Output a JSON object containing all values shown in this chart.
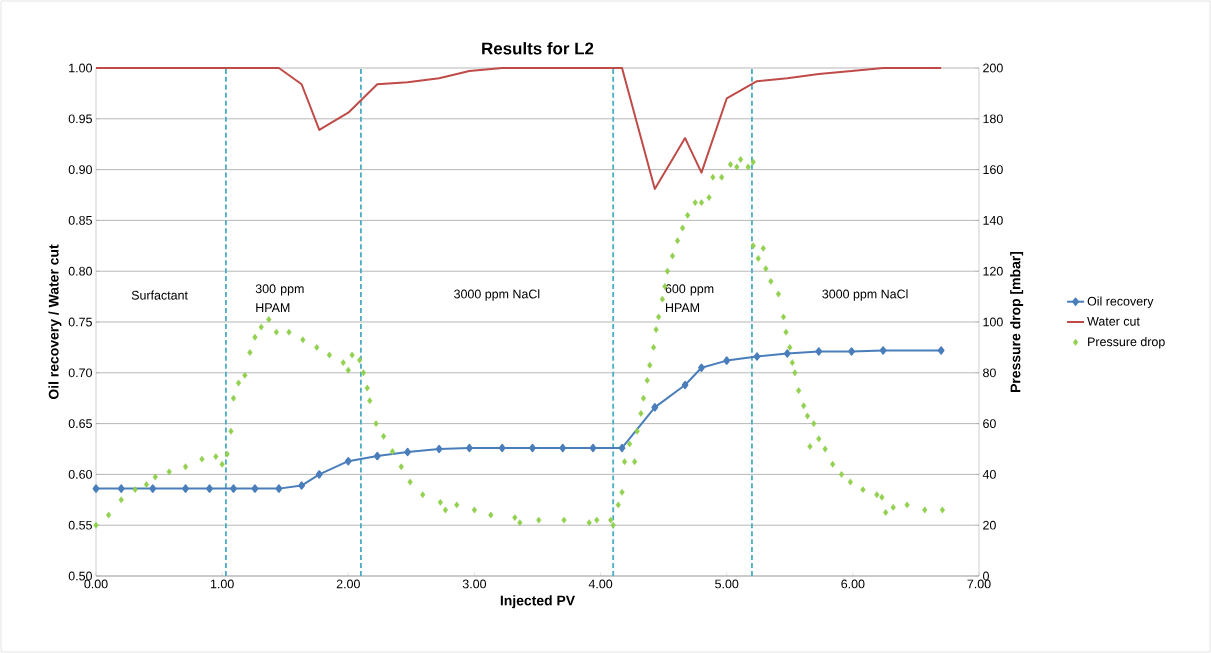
{
  "chart_data": {
    "type": "line",
    "title": "Results for L2",
    "xlabel": "Injected PV",
    "ylabel": "Oil recovery / Water cut",
    "y2label": "Pressure drop [mbar]",
    "xlim": [
      0,
      7
    ],
    "ylim": [
      0.5,
      1.0
    ],
    "y2lim": [
      0,
      200
    ],
    "xticks": [
      {
        "value": 0,
        "label": "0.00"
      },
      {
        "value": 1,
        "label": "1.00"
      },
      {
        "value": 2,
        "label": "2.00"
      },
      {
        "value": 3,
        "label": "3.00"
      },
      {
        "value": 4,
        "label": "4.00"
      },
      {
        "value": 5,
        "label": "5.00"
      },
      {
        "value": 6,
        "label": "6.00"
      },
      {
        "value": 7,
        "label": "7.00"
      }
    ],
    "yticks": [
      {
        "value": 0.5,
        "label": "0.50"
      },
      {
        "value": 0.55,
        "label": "0.55"
      },
      {
        "value": 0.6,
        "label": "0.60"
      },
      {
        "value": 0.65,
        "label": "0.65"
      },
      {
        "value": 0.7,
        "label": "0.70"
      },
      {
        "value": 0.75,
        "label": "0.75"
      },
      {
        "value": 0.8,
        "label": "0.80"
      },
      {
        "value": 0.85,
        "label": "0.85"
      },
      {
        "value": 0.9,
        "label": "0.90"
      },
      {
        "value": 0.95,
        "label": "0.95"
      },
      {
        "value": 1.0,
        "label": "1.00"
      }
    ],
    "y2ticks": [
      0,
      20,
      40,
      60,
      80,
      100,
      120,
      140,
      160,
      180,
      200
    ],
    "grid": "y",
    "legend": "right",
    "series": [
      {
        "name": "Oil recovery",
        "color": "#4a7ebb",
        "marker": "diamond",
        "x": [
          0,
          0.2,
          0.45,
          0.71,
          0.9,
          1.09,
          1.26,
          1.45,
          1.63,
          1.77,
          2.0,
          2.23,
          2.47,
          2.72,
          2.96,
          3.22,
          3.46,
          3.7,
          3.94,
          4.17,
          4.43,
          4.67,
          4.8,
          5.0,
          5.24,
          5.48,
          5.73,
          5.99,
          6.24,
          6.7
        ],
        "values": [
          0.586,
          0.586,
          0.586,
          0.586,
          0.586,
          0.586,
          0.586,
          0.586,
          0.589,
          0.6,
          0.613,
          0.618,
          0.622,
          0.625,
          0.626,
          0.626,
          0.626,
          0.626,
          0.626,
          0.626,
          0.666,
          0.688,
          0.705,
          0.712,
          0.716,
          0.719,
          0.721,
          0.721,
          0.722,
          0.722
        ]
      },
      {
        "name": "Water cut",
        "color": "#be4b48",
        "marker": "none",
        "x": [
          0,
          0.2,
          0.45,
          0.71,
          0.9,
          1.09,
          1.26,
          1.45,
          1.63,
          1.77,
          2.0,
          2.23,
          2.47,
          2.72,
          2.96,
          3.22,
          3.46,
          3.7,
          3.94,
          4.17,
          4.43,
          4.67,
          4.8,
          5.0,
          5.24,
          5.48,
          5.73,
          5.99,
          6.24,
          6.7
        ],
        "values": [
          1.0,
          1.0,
          1.0,
          1.0,
          1.0,
          1.0,
          1.0,
          1.0,
          0.984,
          0.939,
          0.956,
          0.984,
          0.986,
          0.99,
          0.997,
          1.0,
          1.0,
          1.0,
          1.0,
          1.0,
          0.881,
          0.931,
          0.897,
          0.97,
          0.987,
          0.99,
          0.994,
          0.997,
          1.0,
          1.0
        ]
      },
      {
        "name": "Pressure drop",
        "color": "#92d050",
        "type": "scatter",
        "marker": "diamond",
        "axis": "y2",
        "x": [
          0.0,
          0.1,
          0.2,
          0.31,
          0.4,
          0.47,
          0.58,
          0.71,
          0.84,
          0.95,
          1.0,
          1.04,
          1.07,
          1.09,
          1.13,
          1.18,
          1.22,
          1.26,
          1.31,
          1.37,
          1.43,
          1.53,
          1.64,
          1.75,
          1.85,
          1.96,
          2.0,
          2.03,
          2.09,
          2.12,
          2.15,
          2.17,
          2.22,
          2.28,
          2.35,
          2.42,
          2.49,
          2.59,
          2.73,
          2.77,
          2.86,
          3.0,
          3.13,
          3.32,
          3.36,
          3.51,
          3.71,
          3.91,
          3.97,
          4.08,
          4.1,
          4.14,
          4.17,
          4.19,
          4.23,
          4.27,
          4.29,
          4.32,
          4.34,
          4.37,
          4.39,
          4.42,
          4.44,
          4.46,
          4.49,
          4.51,
          4.53,
          4.57,
          4.61,
          4.65,
          4.69,
          4.75,
          4.8,
          4.86,
          4.89,
          4.96,
          5.03,
          5.08,
          5.11,
          5.17,
          5.21,
          5.21,
          5.25,
          5.29,
          5.31,
          5.35,
          5.41,
          5.45,
          5.47,
          5.5,
          5.52,
          5.54,
          5.57,
          5.61,
          5.64,
          5.66,
          5.69,
          5.73,
          5.78,
          5.84,
          5.91,
          5.98,
          6.08,
          6.19,
          6.23,
          6.26,
          6.32,
          6.43,
          6.57,
          6.71
        ],
        "values": [
          20,
          24,
          30,
          34,
          36,
          39,
          41,
          43,
          46,
          47,
          44,
          48,
          57,
          70,
          76,
          79,
          88,
          94,
          98,
          101,
          96,
          96,
          93,
          90,
          87,
          84,
          81,
          87,
          85,
          80,
          74,
          69,
          60,
          55,
          49,
          43,
          37,
          32,
          29,
          26,
          28,
          26,
          24,
          23,
          21,
          22,
          22,
          21,
          22,
          22,
          20,
          28,
          33,
          45,
          52,
          45,
          57,
          64,
          70,
          77,
          83,
          90,
          97,
          102,
          109,
          114,
          120,
          126,
          132,
          137,
          142,
          147,
          147,
          149,
          157,
          157,
          162,
          161,
          164,
          161,
          163,
          130,
          125,
          129,
          121,
          116,
          111,
          102,
          96,
          90,
          84,
          80,
          73,
          67,
          63,
          51,
          60,
          54,
          50,
          44,
          40,
          37,
          34,
          32,
          31,
          25,
          27,
          28,
          26,
          26
        ]
      }
    ],
    "ref_lines": [
      {
        "axis": "x",
        "value": 1.03,
        "color": "#4bacc6",
        "line_style": "dashed"
      },
      {
        "axis": "x",
        "value": 2.1,
        "color": "#4bacc6",
        "line_style": "dashed"
      },
      {
        "axis": "x",
        "value": 4.1,
        "color": "#4bacc6",
        "line_style": "dashed"
      },
      {
        "axis": "x",
        "value": 5.2,
        "color": "#4bacc6",
        "line_style": "dashed"
      }
    ],
    "annotations": [
      "Surfactant",
      "300 ppm HPAM",
      "3000 ppm NaCl",
      "600 ppm HPAM",
      "3000 ppm NaCl"
    ]
  }
}
